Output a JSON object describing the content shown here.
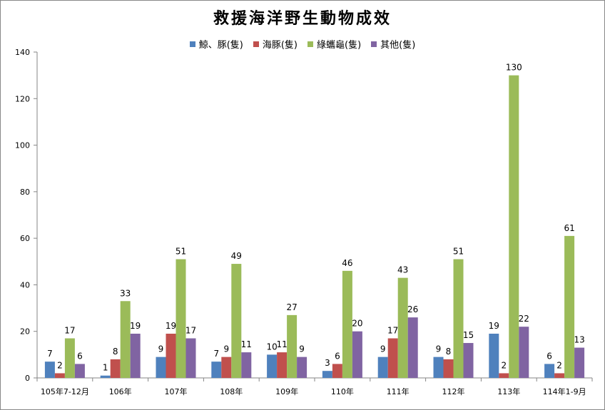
{
  "chart_data": {
    "type": "bar",
    "title": "救援海洋野生動物成效",
    "xlabel": "",
    "ylabel": "",
    "ylim": [
      0,
      140
    ],
    "yticks": [
      0,
      20,
      40,
      60,
      80,
      100,
      120,
      140
    ],
    "grid": false,
    "legend_position": "top",
    "categories": [
      "105年7-12月",
      "106年",
      "107年",
      "108年",
      "109年",
      "110年",
      "111年",
      "112年",
      "113年",
      "114年1-9月"
    ],
    "series": [
      {
        "name": "鯨、豚(隻)",
        "color": "#4F81BD",
        "values": [
          7,
          1,
          9,
          7,
          10,
          3,
          9,
          9,
          19,
          6
        ]
      },
      {
        "name": "海豚(隻)",
        "color": "#C0504D",
        "values": [
          2,
          8,
          19,
          9,
          11,
          6,
          17,
          8,
          2,
          2
        ]
      },
      {
        "name": "綠蠵龜(隻)",
        "color": "#9BBB59",
        "values": [
          17,
          33,
          51,
          49,
          27,
          46,
          43,
          51,
          130,
          61
        ]
      },
      {
        "name": "其他(隻)",
        "color": "#8064A2",
        "values": [
          6,
          19,
          17,
          11,
          9,
          20,
          26,
          15,
          22,
          13
        ]
      }
    ]
  }
}
